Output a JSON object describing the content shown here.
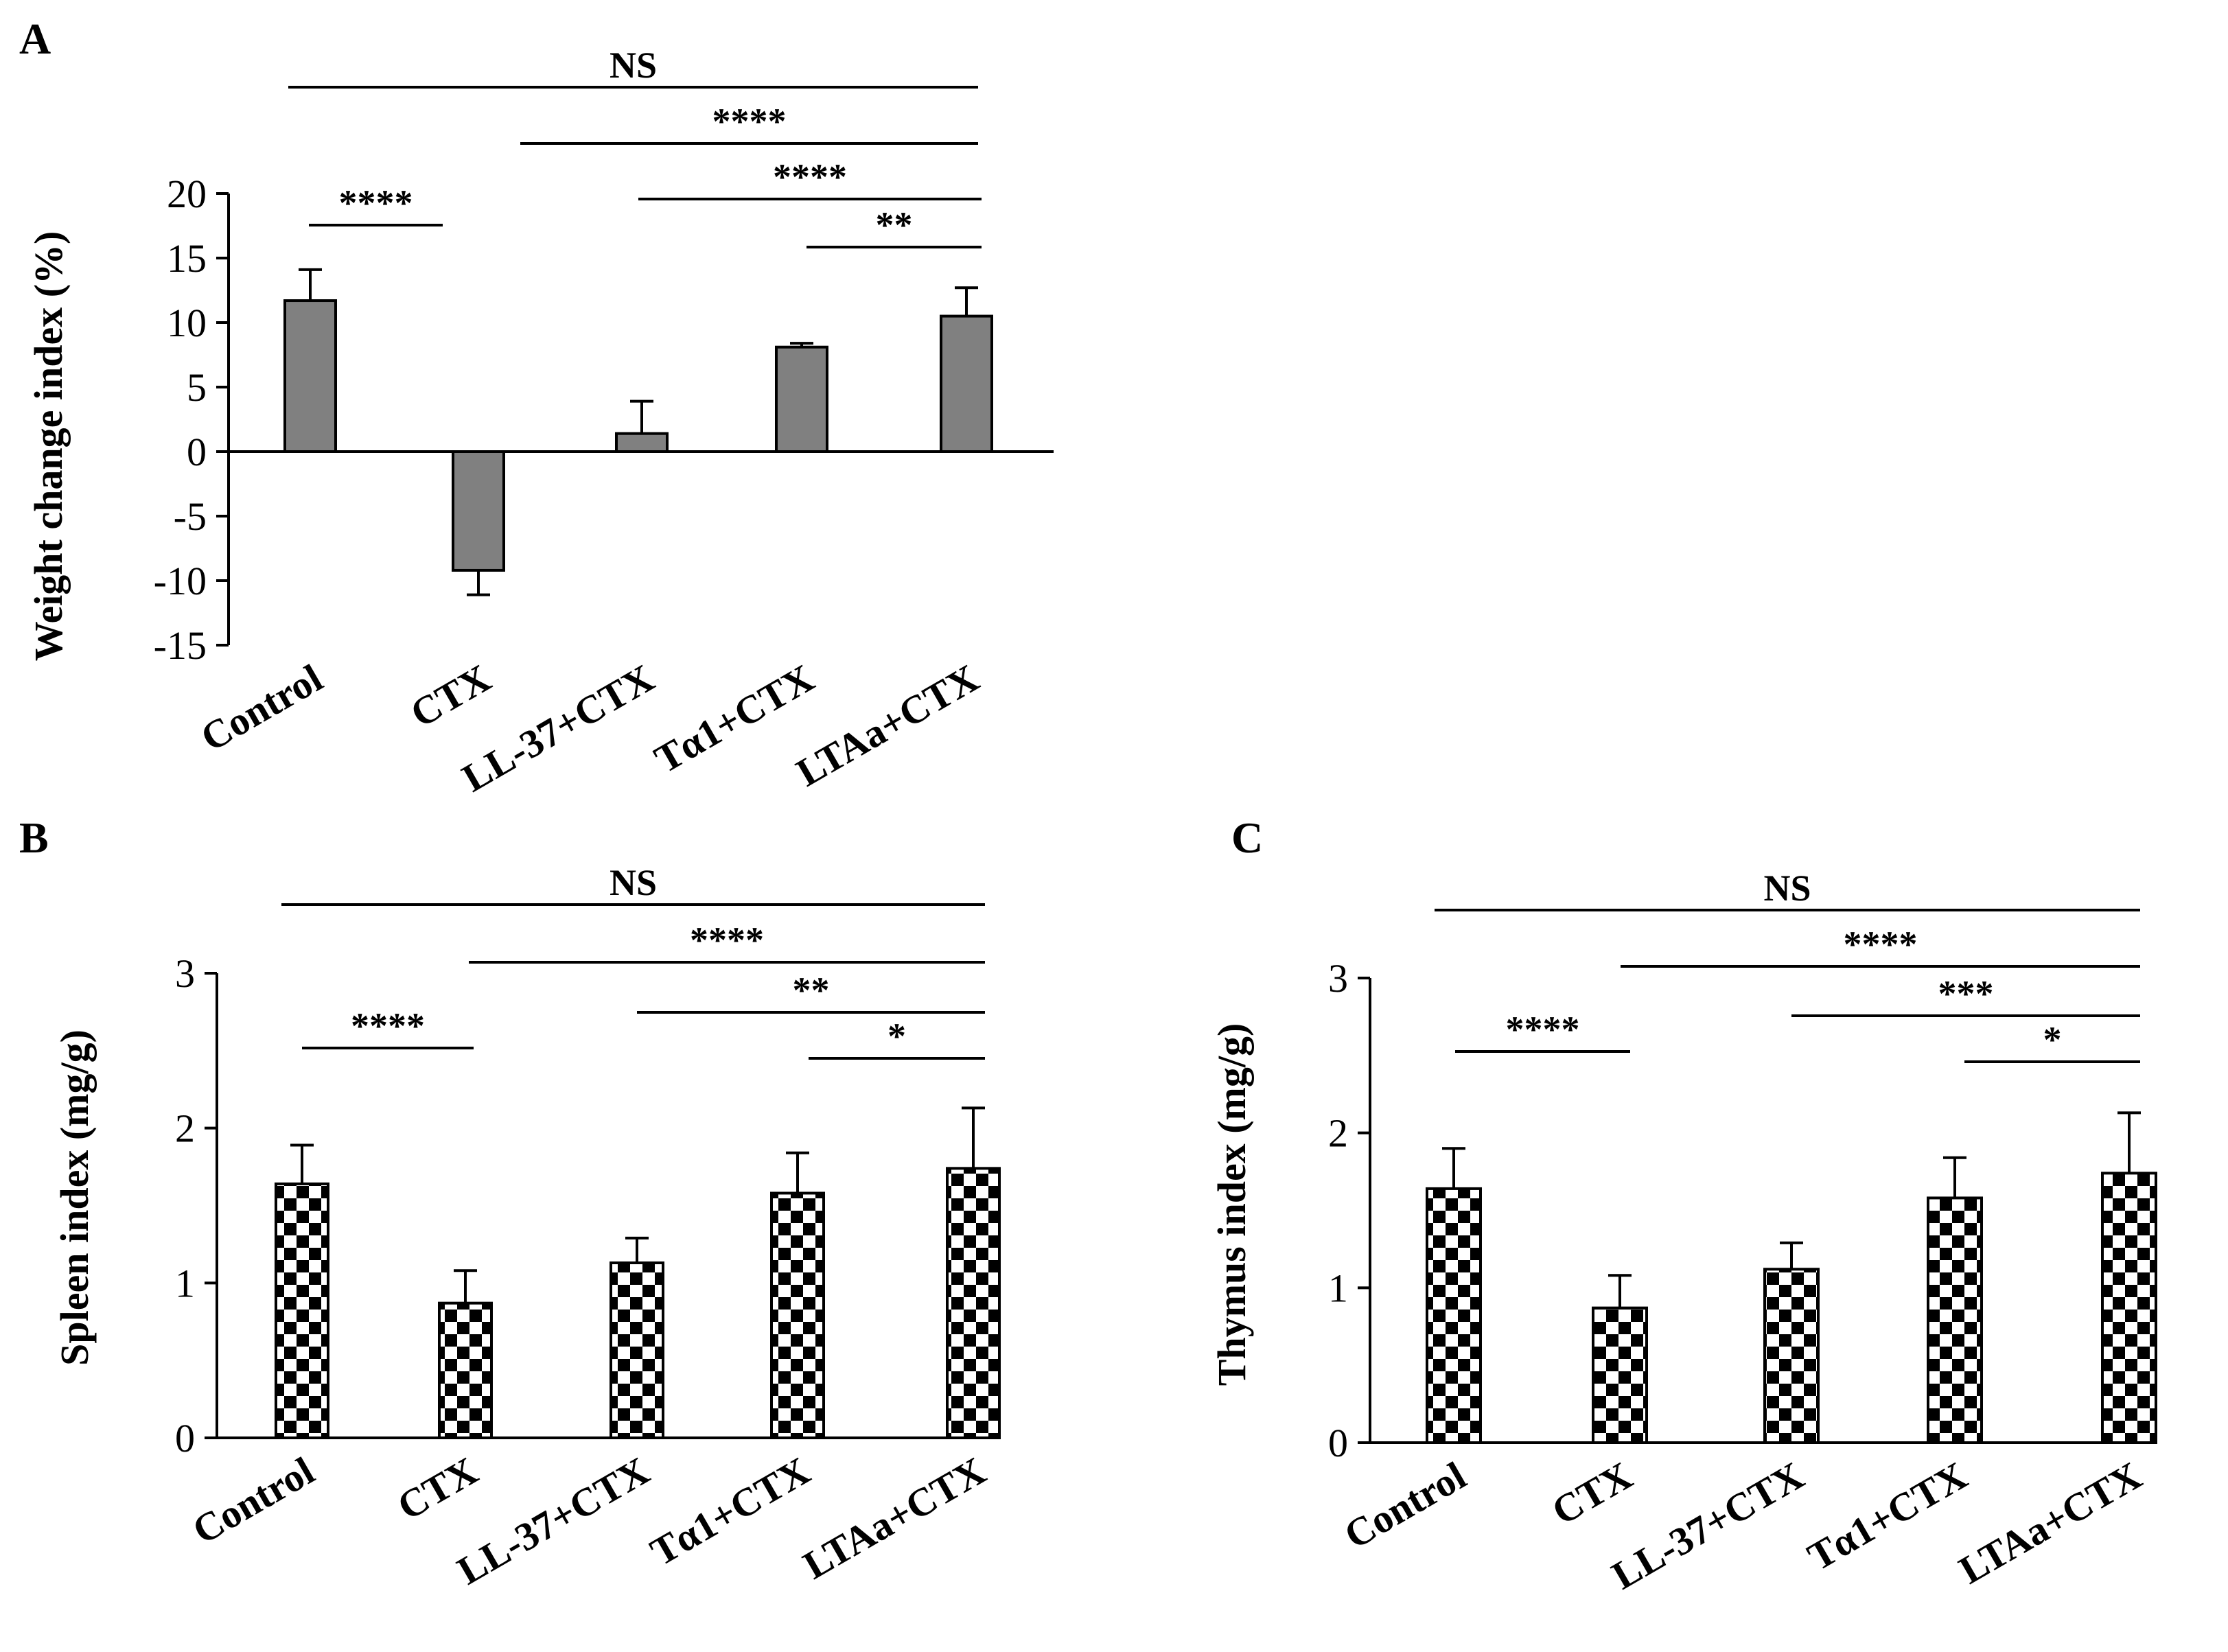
{
  "chart_data": [
    {
      "panel": "A",
      "type": "bar",
      "ylabel": "Weight change index (%)",
      "categories": [
        "Control",
        "CTX",
        "LL-37+CTX",
        "Tα1+CTX",
        "LTAa+CTX"
      ],
      "values": [
        11.7,
        -9.2,
        1.4,
        8.1,
        10.5
      ],
      "errors": [
        2.4,
        1.9,
        2.5,
        0.3,
        2.2
      ],
      "ylim": [
        -15,
        20
      ],
      "yticks": [
        20,
        15,
        10,
        5,
        0,
        -5,
        -10,
        -15
      ],
      "bar_fill": "gray",
      "significance": [
        {
          "label": "NS",
          "from": 0,
          "to": 4
        },
        {
          "label": "****",
          "from": 1,
          "to": 4
        },
        {
          "label": "****",
          "from": 2,
          "to": 4
        },
        {
          "label": "**",
          "from": 3,
          "to": 4
        },
        {
          "label": "****",
          "from": 0,
          "to": 1
        }
      ]
    },
    {
      "panel": "B",
      "type": "bar",
      "ylabel": "Spleen index (mg/g)",
      "categories": [
        "Control",
        "CTX",
        "LL-37+CTX",
        "Tα1+CTX",
        "LTAa+CTX"
      ],
      "values": [
        1.64,
        0.87,
        1.13,
        1.58,
        1.74
      ],
      "errors": [
        0.25,
        0.21,
        0.16,
        0.26,
        0.39
      ],
      "ylim": [
        0,
        3
      ],
      "yticks": [
        3,
        2,
        1,
        0
      ],
      "bar_fill": "checker",
      "significance": [
        {
          "label": "NS",
          "from": 0,
          "to": 4
        },
        {
          "label": "****",
          "from": 1,
          "to": 4
        },
        {
          "label": "**",
          "from": 2,
          "to": 4
        },
        {
          "label": "*",
          "from": 3,
          "to": 4
        },
        {
          "label": "****",
          "from": 0,
          "to": 1
        }
      ]
    },
    {
      "panel": "C",
      "type": "bar",
      "ylabel": "Thymus index (mg/g)",
      "categories": [
        "Control",
        "CTX",
        "LL-37+CTX",
        "Tα1+CTX",
        "LTAa+CTX"
      ],
      "values": [
        1.64,
        0.87,
        1.12,
        1.58,
        1.74
      ],
      "errors": [
        0.26,
        0.21,
        0.17,
        0.26,
        0.39
      ],
      "ylim": [
        0,
        3
      ],
      "yticks": [
        3,
        2,
        1,
        0
      ],
      "bar_fill": "checker",
      "significance": [
        {
          "label": "NS",
          "from": 0,
          "to": 4
        },
        {
          "label": "****",
          "from": 1,
          "to": 4
        },
        {
          "label": "***",
          "from": 2,
          "to": 4
        },
        {
          "label": "*",
          "from": 3,
          "to": 4
        },
        {
          "label": "****",
          "from": 0,
          "to": 1
        }
      ]
    }
  ],
  "colors": {
    "bar_gray": "#808080",
    "ink": "#000000",
    "paper": "#ffffff"
  }
}
